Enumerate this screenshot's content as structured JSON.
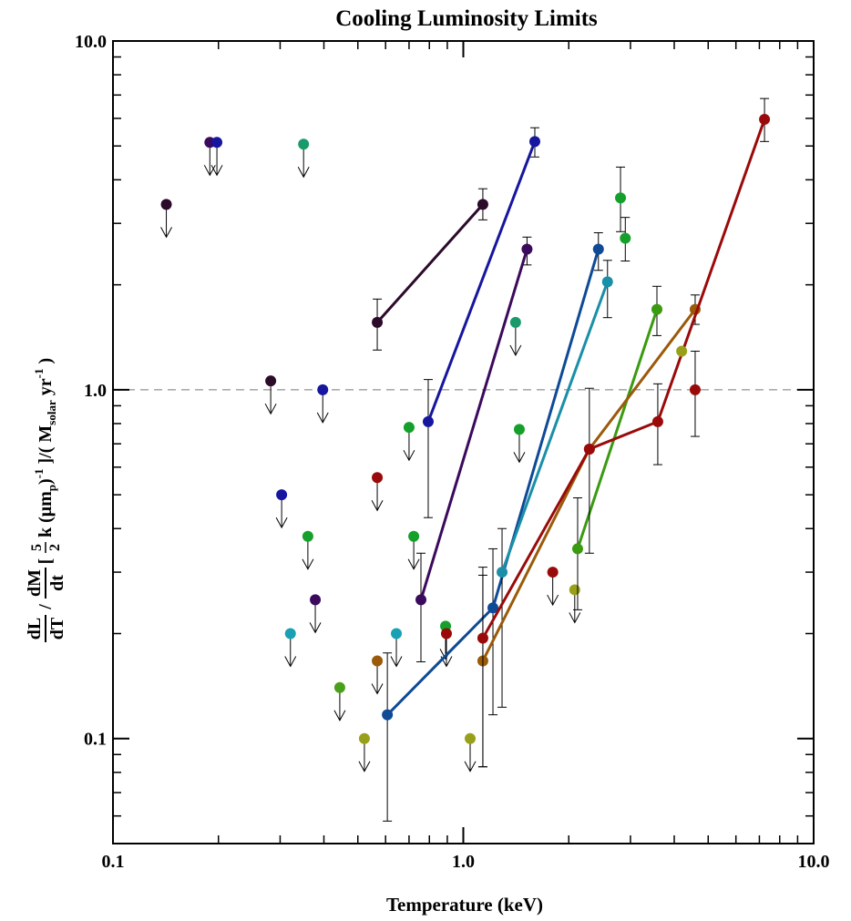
{
  "chart_data": {
    "type": "scatter",
    "title": "Cooling Luminosity Limits",
    "xlabel": "Temperature (keV)",
    "ylabel_parts": [
      "dL",
      "dT",
      "/",
      "dM",
      "dt",
      "[",
      "5",
      "2",
      "k (μm",
      "p",
      ")",
      "-1",
      " ]/( M",
      "solar",
      " yr",
      "-1",
      " )"
    ],
    "xscale": "log",
    "yscale": "log",
    "xlim": [
      0.1,
      10
    ],
    "ylim": [
      0.05,
      10
    ],
    "xticks": [
      0.1,
      {
        "value": 1,
        "label": "1.0"
      },
      {
        "value": 10,
        "label": "10.0"
      }
    ],
    "yticks": [
      0.1,
      {
        "value": 1,
        "label": "1.0"
      },
      {
        "value": 10,
        "label": "10.0"
      }
    ],
    "hline": 1,
    "series": [
      {
        "color": "#2b0a2a",
        "upper_limit": true,
        "connected": false,
        "x": [
          0.142,
          0.282
        ],
        "values": [
          3.4,
          1.06
        ]
      },
      {
        "color": "#3b0a5c",
        "upper_limit": true,
        "connected": false,
        "x": [
          0.189,
          0.378
        ],
        "values": [
          5.12,
          0.25
        ]
      },
      {
        "color": "#16169e",
        "upper_limit": true,
        "connected": false,
        "x": [
          0.198,
          0.397,
          0.303
        ],
        "values": [
          5.12,
          1.0,
          0.5
        ]
      },
      {
        "color": "#1a9a6a",
        "upper_limit": true,
        "connected": false,
        "x": [
          0.35,
          1.41
        ],
        "values": [
          5.06,
          1.56
        ]
      },
      {
        "color": "#14a02a",
        "upper_limit": true,
        "connected": false,
        "x": [
          0.36,
          0.722,
          0.7,
          0.89,
          1.445
        ],
        "values": [
          0.38,
          0.38,
          0.78,
          0.21,
          0.77
        ]
      },
      {
        "color": "#1aa0b4",
        "upper_limit": true,
        "connected": false,
        "x": [
          0.321,
          0.644
        ],
        "values": [
          0.2,
          0.2
        ]
      },
      {
        "color": "#4aa01a",
        "upper_limit": true,
        "connected": false,
        "x": [
          0.444
        ],
        "values": [
          0.14
        ]
      },
      {
        "color": "#98a01a",
        "upper_limit": true,
        "connected": false,
        "x": [
          0.522,
          1.046,
          2.08
        ],
        "values": [
          0.1,
          0.1,
          0.267
        ]
      },
      {
        "color": "#9a0a0a",
        "upper_limit": true,
        "connected": false,
        "x": [
          0.568,
          0.895,
          1.8
        ],
        "values": [
          0.56,
          0.2,
          0.3
        ]
      },
      {
        "color": "#9a5a0a",
        "upper_limit": true,
        "connected": false,
        "x": [
          0.568
        ],
        "values": [
          0.167
        ]
      },
      {
        "color": "#2b0a2a",
        "upper_limit": false,
        "connected": true,
        "x": [
          0.568,
          1.137
        ],
        "values": [
          1.56,
          3.4
        ],
        "lower": [
          1.3,
          3.07
        ],
        "upper": [
          1.82,
          3.77
        ]
      },
      {
        "color": "#16169e",
        "upper_limit": false,
        "connected": true,
        "x": [
          0.794,
          1.6
        ],
        "values": [
          0.81,
          5.15
        ],
        "lower": [
          0.43,
          4.65
        ],
        "upper": [
          1.07,
          5.64
        ]
      },
      {
        "color": "#3b0a5c",
        "upper_limit": false,
        "connected": true,
        "x": [
          0.757,
          1.52
        ],
        "values": [
          0.25,
          2.53
        ],
        "lower": [
          0.166,
          2.28
        ],
        "upper": [
          0.34,
          2.74
        ]
      },
      {
        "color": "#0e4a96",
        "upper_limit": false,
        "connected": true,
        "x": [
          0.607,
          1.215,
          2.43
        ],
        "values": [
          0.117,
          0.237,
          2.53
        ],
        "lower": [
          0.058,
          0.117,
          2.2
        ],
        "upper": [
          0.176,
          0.35,
          2.82
        ]
      },
      {
        "color": "#1a8fa8",
        "upper_limit": false,
        "connected": true,
        "x": [
          1.29,
          2.58
        ],
        "values": [
          0.3,
          2.04
        ],
        "lower": [
          0.123,
          1.61
        ],
        "upper": [
          0.4,
          2.35
        ]
      },
      {
        "color": "#3a9a10",
        "upper_limit": false,
        "connected": true,
        "x": [
          2.12,
          3.57
        ],
        "values": [
          0.35,
          1.7
        ],
        "lower": [
          0.234,
          1.43
        ],
        "upper": [
          0.49,
          1.98
        ]
      },
      {
        "color": "#9a5a0a",
        "upper_limit": false,
        "connected": true,
        "x": [
          1.137,
          2.29,
          4.59
        ],
        "values": [
          0.167,
          0.676,
          1.7
        ],
        "lower": [
          0.083,
          0.34,
          1.54
        ],
        "upper": [
          0.294,
          1.01,
          1.87
        ]
      },
      {
        "color": "#9a0a0a",
        "upper_limit": false,
        "connected": true,
        "x": [
          1.137,
          2.29,
          3.59,
          7.24
        ],
        "values": [
          0.194,
          0.676,
          0.81,
          5.96
        ],
        "lower": [
          0.083,
          null,
          0.61,
          5.15
        ],
        "upper": [
          0.31,
          null,
          1.04,
          6.84
        ]
      },
      {
        "color": "#9a0a0a",
        "upper_limit": false,
        "connected": false,
        "x": [
          4.59
        ],
        "values": [
          1.0
        ],
        "lower": [
          0.735
        ],
        "upper": [
          1.29
        ]
      },
      {
        "color": "#98a01a",
        "upper_limit": false,
        "connected": false,
        "x": [
          4.2
        ],
        "values": [
          1.29
        ]
      },
      {
        "color": "#14a02a",
        "upper_limit": false,
        "connected": false,
        "x": [
          2.81,
          2.9
        ],
        "values": [
          3.55,
          2.72
        ],
        "lower": [
          2.84,
          2.34
        ],
        "upper": [
          4.35,
          3.12
        ]
      }
    ]
  }
}
